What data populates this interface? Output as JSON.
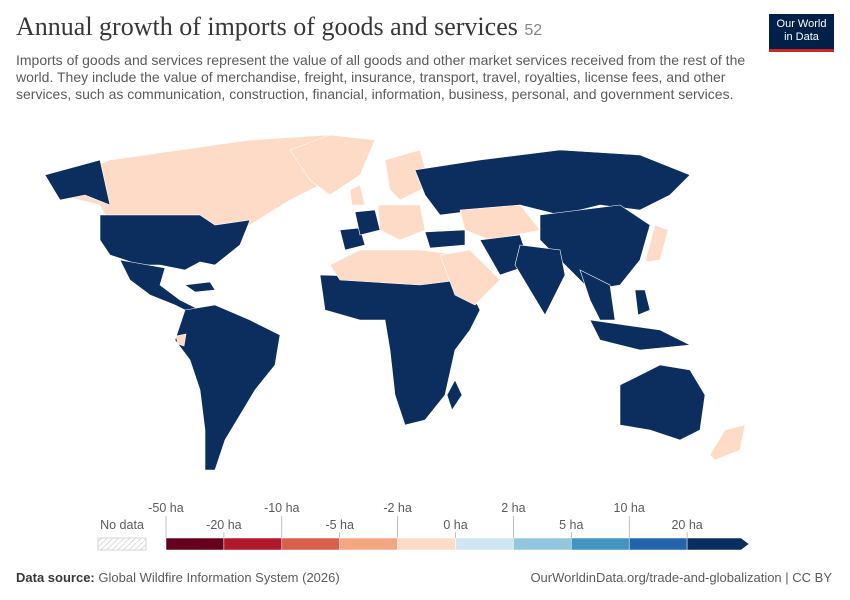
{
  "header": {
    "title": "Annual growth of imports of goods and services",
    "badge": "52",
    "subtitle": "Imports of goods and services represent the value of all goods and other market services received from the rest of the world. They include the value of merchandise, freight, insurance, transport, travel, royalties, license fees, and other services, such as communication, construction, financial, information, business, personal, and government services.",
    "logo": [
      "Our World",
      "in Data"
    ]
  },
  "legend": {
    "no_data": "No data",
    "ticks": [
      "-50 ha",
      "-20 ha",
      "-10 ha",
      "-5 ha",
      "-2 ha",
      "0 ha",
      "2 ha",
      "5 ha",
      "10 ha",
      "20 ha"
    ],
    "colors": [
      "#67001f",
      "#b2182b",
      "#d6604d",
      "#f4a582",
      "#fddbc7",
      "#d1e5f0",
      "#92c5de",
      "#4393c3",
      "#2166ac",
      "#0c2e5e"
    ]
  },
  "footer": {
    "source_label": "Data source:",
    "source": "Global Wildfire Information System (2026)",
    "license": "OurWorldinData.org/trade-and-globalization | CC BY"
  }
}
